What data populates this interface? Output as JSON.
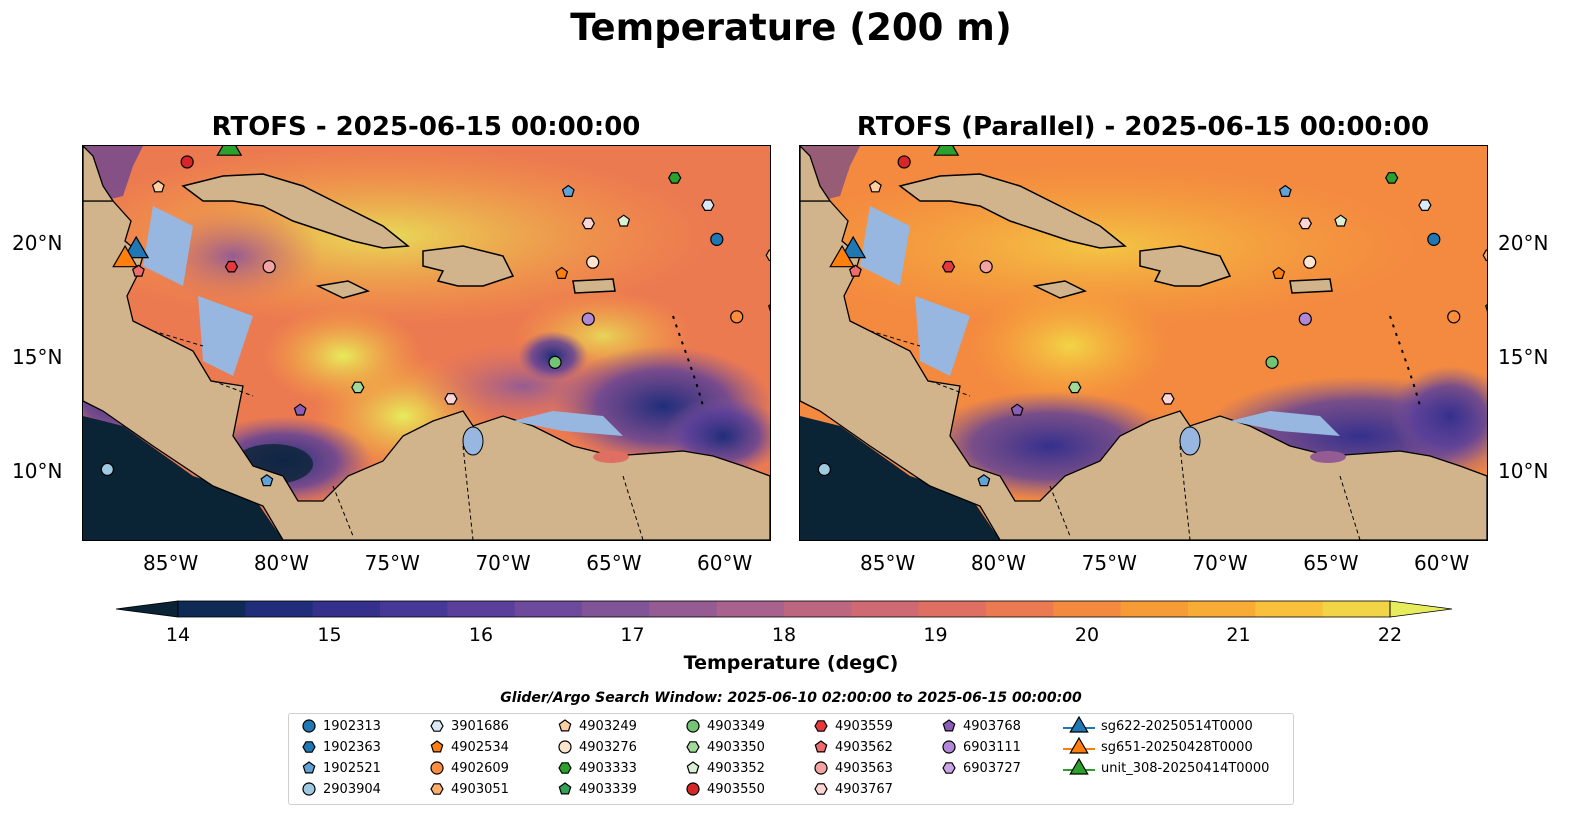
{
  "suptitle": "Temperature (200 m)",
  "panels": [
    {
      "title": "RTOFS - 2025-06-15 00:00:00"
    },
    {
      "title": "RTOFS (Parallel) - 2025-06-15 00:00:00"
    }
  ],
  "lon_ticks": [
    "85°W",
    "80°W",
    "75°W",
    "70°W",
    "65°W",
    "60°W"
  ],
  "lon_values": [
    -85,
    -80,
    -75,
    -70,
    -65,
    -60
  ],
  "lat_ticks": [
    "20°N",
    "15°N",
    "10°N"
  ],
  "lat_values": [
    20,
    15,
    10
  ],
  "extent": {
    "lon": [
      -89,
      -58
    ],
    "lat": [
      7,
      24.3
    ]
  },
  "colorbar": {
    "label": "Temperature (degC)",
    "ticks": [
      "14",
      "15",
      "16",
      "17",
      "18",
      "19",
      "20",
      "21",
      "22"
    ],
    "range": [
      14,
      22
    ],
    "extend": "both",
    "colors": [
      "#0a2436",
      "#0f2a55",
      "#1f2d7a",
      "#34308c",
      "#463896",
      "#5a3f9b",
      "#6e4a9c",
      "#815497",
      "#955c93",
      "#a8628d",
      "#bd6680",
      "#cf6a72",
      "#df6f62",
      "#ec7a51",
      "#f48a40",
      "#f79b37",
      "#f8ac36",
      "#f8c03b",
      "#f2d546",
      "#e6ec5b"
    ]
  },
  "search_window": "Glider/Argo Search Window: 2025-06-10 02:00:00 to 2025-06-15 00:00:00",
  "legend": [
    {
      "label": "1902313",
      "marker": "circle",
      "color": "#1f77b4"
    },
    {
      "label": "1902363",
      "marker": "hexagon",
      "color": "#1f77b4"
    },
    {
      "label": "1902521",
      "marker": "pentagon",
      "color": "#5fa3d9"
    },
    {
      "label": "2903904",
      "marker": "circle",
      "color": "#9ecae1"
    },
    {
      "label": "3901686",
      "marker": "hexagon",
      "color": "#dbe9f6"
    },
    {
      "label": "4902534",
      "marker": "pentagon",
      "color": "#ff7f0e"
    },
    {
      "label": "4902609",
      "marker": "circle",
      "color": "#fd8d3c"
    },
    {
      "label": "4903051",
      "marker": "hexagon",
      "color": "#fdae6b"
    },
    {
      "label": "4903249",
      "marker": "pentagon",
      "color": "#fdd0a2"
    },
    {
      "label": "4903276",
      "marker": "circle",
      "color": "#fee6ce"
    },
    {
      "label": "4903333",
      "marker": "hexagon",
      "color": "#2ca02c"
    },
    {
      "label": "4903339",
      "marker": "pentagon",
      "color": "#31a354"
    },
    {
      "label": "4903349",
      "marker": "circle",
      "color": "#74c476"
    },
    {
      "label": "4903350",
      "marker": "hexagon",
      "color": "#a1d99b"
    },
    {
      "label": "4903352",
      "marker": "pentagon",
      "color": "#d9f0d3"
    },
    {
      "label": "4903550",
      "marker": "circle",
      "color": "#d62728"
    },
    {
      "label": "4903559",
      "marker": "hexagon",
      "color": "#e6393b"
    },
    {
      "label": "4903562",
      "marker": "pentagon",
      "color": "#ee6b6e"
    },
    {
      "label": "4903563",
      "marker": "circle",
      "color": "#f4a3a3"
    },
    {
      "label": "4903767",
      "marker": "hexagon",
      "color": "#fcd5d5"
    },
    {
      "label": "4903768",
      "marker": "pentagon",
      "color": "#8c5db8"
    },
    {
      "label": "6903111",
      "marker": "circle",
      "color": "#b088d6"
    },
    {
      "label": "6903727",
      "marker": "hexagon",
      "color": "#c7a4e6"
    },
    {
      "label": "sg622-20250514T0000",
      "marker": "triangle",
      "color": "#1f77b4"
    },
    {
      "label": "sg651-20250428T0000",
      "marker": "triangle",
      "color": "#ff7f0e"
    },
    {
      "label": "unit_308-20250414T0000",
      "marker": "triangle",
      "color": "#2ca02c"
    }
  ],
  "floats": [
    {
      "id": "4903550",
      "lon": -84.3,
      "lat": 23.6
    },
    {
      "id": "4903249",
      "lon": -85.6,
      "lat": 22.5
    },
    {
      "id": "1902521",
      "lon": -67.1,
      "lat": 22.3
    },
    {
      "id": "4903333",
      "lon": -62.3,
      "lat": 22.9
    },
    {
      "id": "3901686",
      "lon": -60.8,
      "lat": 21.7
    },
    {
      "id": "4903767",
      "lon": -66.2,
      "lat": 20.9
    },
    {
      "id": "4903352",
      "lon": -64.6,
      "lat": 21.0
    },
    {
      "id": "1902313",
      "lon": -60.4,
      "lat": 20.2
    },
    {
      "id": "4903051",
      "lon": -57.9,
      "lat": 19.5
    },
    {
      "id": "4903559",
      "lon": -82.3,
      "lat": 19.0
    },
    {
      "id": "4903563",
      "lon": -80.6,
      "lat": 19.0
    },
    {
      "id": "4903562",
      "lon": -86.5,
      "lat": 18.8
    },
    {
      "id": "4902534",
      "lon": -67.4,
      "lat": 18.7
    },
    {
      "id": "4903276",
      "lon": -66.0,
      "lat": 19.2
    },
    {
      "id": "4903339",
      "lon": -57.8,
      "lat": 17.2
    },
    {
      "id": "4902609",
      "lon": -59.5,
      "lat": 16.8
    },
    {
      "id": "6903111",
      "lon": -66.2,
      "lat": 16.7
    },
    {
      "id": "4903349",
      "lon": -67.7,
      "lat": 14.8
    },
    {
      "id": "4903350",
      "lon": -76.6,
      "lat": 13.7
    },
    {
      "id": "4903767",
      "lon": -72.4,
      "lat": 13.2
    },
    {
      "id": "4903768",
      "lon": -79.2,
      "lat": 12.7
    },
    {
      "id": "2903904",
      "lon": -87.9,
      "lat": 10.1
    },
    {
      "id": "1902521",
      "lon": -80.7,
      "lat": 9.6
    }
  ],
  "gliders": [
    {
      "id": "sg622-20250514T0000",
      "lon": -86.6,
      "lat": 19.7
    },
    {
      "id": "sg651-20250428T0000",
      "lon": -87.1,
      "lat": 19.3
    },
    {
      "id": "unit_308-20250414T0000",
      "lon": -82.4,
      "lat": 24.2
    }
  ]
}
